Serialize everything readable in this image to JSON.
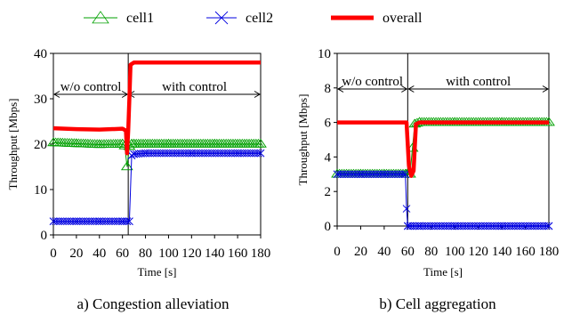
{
  "legend": [
    {
      "name": "cell1",
      "color": "#00a000",
      "marker": "triangle-icon"
    },
    {
      "name": "cell2",
      "color": "#0000e0",
      "marker": "x-cross-icon"
    },
    {
      "name": "overall",
      "color": "#ff0000",
      "marker": "thick-line-icon"
    }
  ],
  "colors": {
    "cell1": "#00a000",
    "cell2": "#0000e0",
    "overall": "#ff0000"
  },
  "chart_data": [
    {
      "type": "line",
      "caption": "a) Congestion alleviation",
      "xlabel": "Time [s]",
      "ylabel": "Throughput [Mbps]",
      "xlim": [
        0,
        180
      ],
      "ylim": [
        0,
        40
      ],
      "xticks": [
        0,
        20,
        40,
        60,
        80,
        100,
        120,
        140,
        160,
        180
      ],
      "yticks": [
        0,
        10,
        20,
        30,
        40
      ],
      "grid": false,
      "divider_x": 65,
      "annotations": {
        "left": "w/o control",
        "right": "with control"
      },
      "series": [
        {
          "name": "cell1",
          "x": [
            0,
            20,
            40,
            60,
            62,
            64,
            66,
            68,
            70,
            100,
            140,
            180
          ],
          "y": [
            20.3,
            20.1,
            19.9,
            20.0,
            19.6,
            15.0,
            19.5,
            20.0,
            20.0,
            20.0,
            20.0,
            20.0
          ]
        },
        {
          "name": "cell2",
          "x": [
            0,
            20,
            40,
            60,
            64,
            66,
            68,
            70,
            80,
            120,
            160,
            180
          ],
          "y": [
            3.0,
            3.0,
            3.0,
            3.0,
            3.0,
            3.0,
            17.5,
            17.8,
            18.0,
            18.0,
            18.0,
            18.0
          ]
        },
        {
          "name": "overall",
          "x": [
            0,
            20,
            40,
            60,
            63,
            64,
            65,
            66,
            67,
            70,
            100,
            140,
            180
          ],
          "y": [
            23.5,
            23.3,
            23.2,
            23.4,
            23.0,
            18.0,
            23.0,
            30.0,
            37.5,
            38.0,
            38.0,
            38.0,
            38.0
          ]
        }
      ]
    },
    {
      "type": "line",
      "caption": "b) Cell aggregation",
      "xlabel": "Time [s]",
      "ylabel": "Throughput [Mbps]",
      "xlim": [
        0,
        180
      ],
      "ylim": [
        0,
        10
      ],
      "xticks": [
        0,
        20,
        40,
        60,
        80,
        100,
        120,
        140,
        160,
        180
      ],
      "yticks": [
        0,
        2,
        4,
        6,
        8,
        10
      ],
      "grid": false,
      "divider_x": 60,
      "annotations": {
        "left": "w/o control",
        "right": "with control"
      },
      "series": [
        {
          "name": "cell1",
          "x": [
            0,
            20,
            40,
            59,
            62,
            64,
            66,
            70,
            100,
            140,
            180
          ],
          "y": [
            3.0,
            3.0,
            3.0,
            3.0,
            3.0,
            4.5,
            5.9,
            6.0,
            6.0,
            6.0,
            6.0
          ]
        },
        {
          "name": "cell2",
          "x": [
            0,
            20,
            40,
            58,
            59,
            60,
            62,
            70,
            100,
            140,
            180
          ],
          "y": [
            3.0,
            3.0,
            3.0,
            3.0,
            1.0,
            0.0,
            0.0,
            0.0,
            0.0,
            0.0,
            0.0
          ]
        },
        {
          "name": "overall",
          "x": [
            0,
            20,
            40,
            59,
            61,
            63,
            65,
            67,
            70,
            100,
            140,
            180
          ],
          "y": [
            6.0,
            6.0,
            6.0,
            6.0,
            3.5,
            2.9,
            3.2,
            5.9,
            6.0,
            6.0,
            6.0,
            6.0
          ]
        }
      ]
    }
  ]
}
